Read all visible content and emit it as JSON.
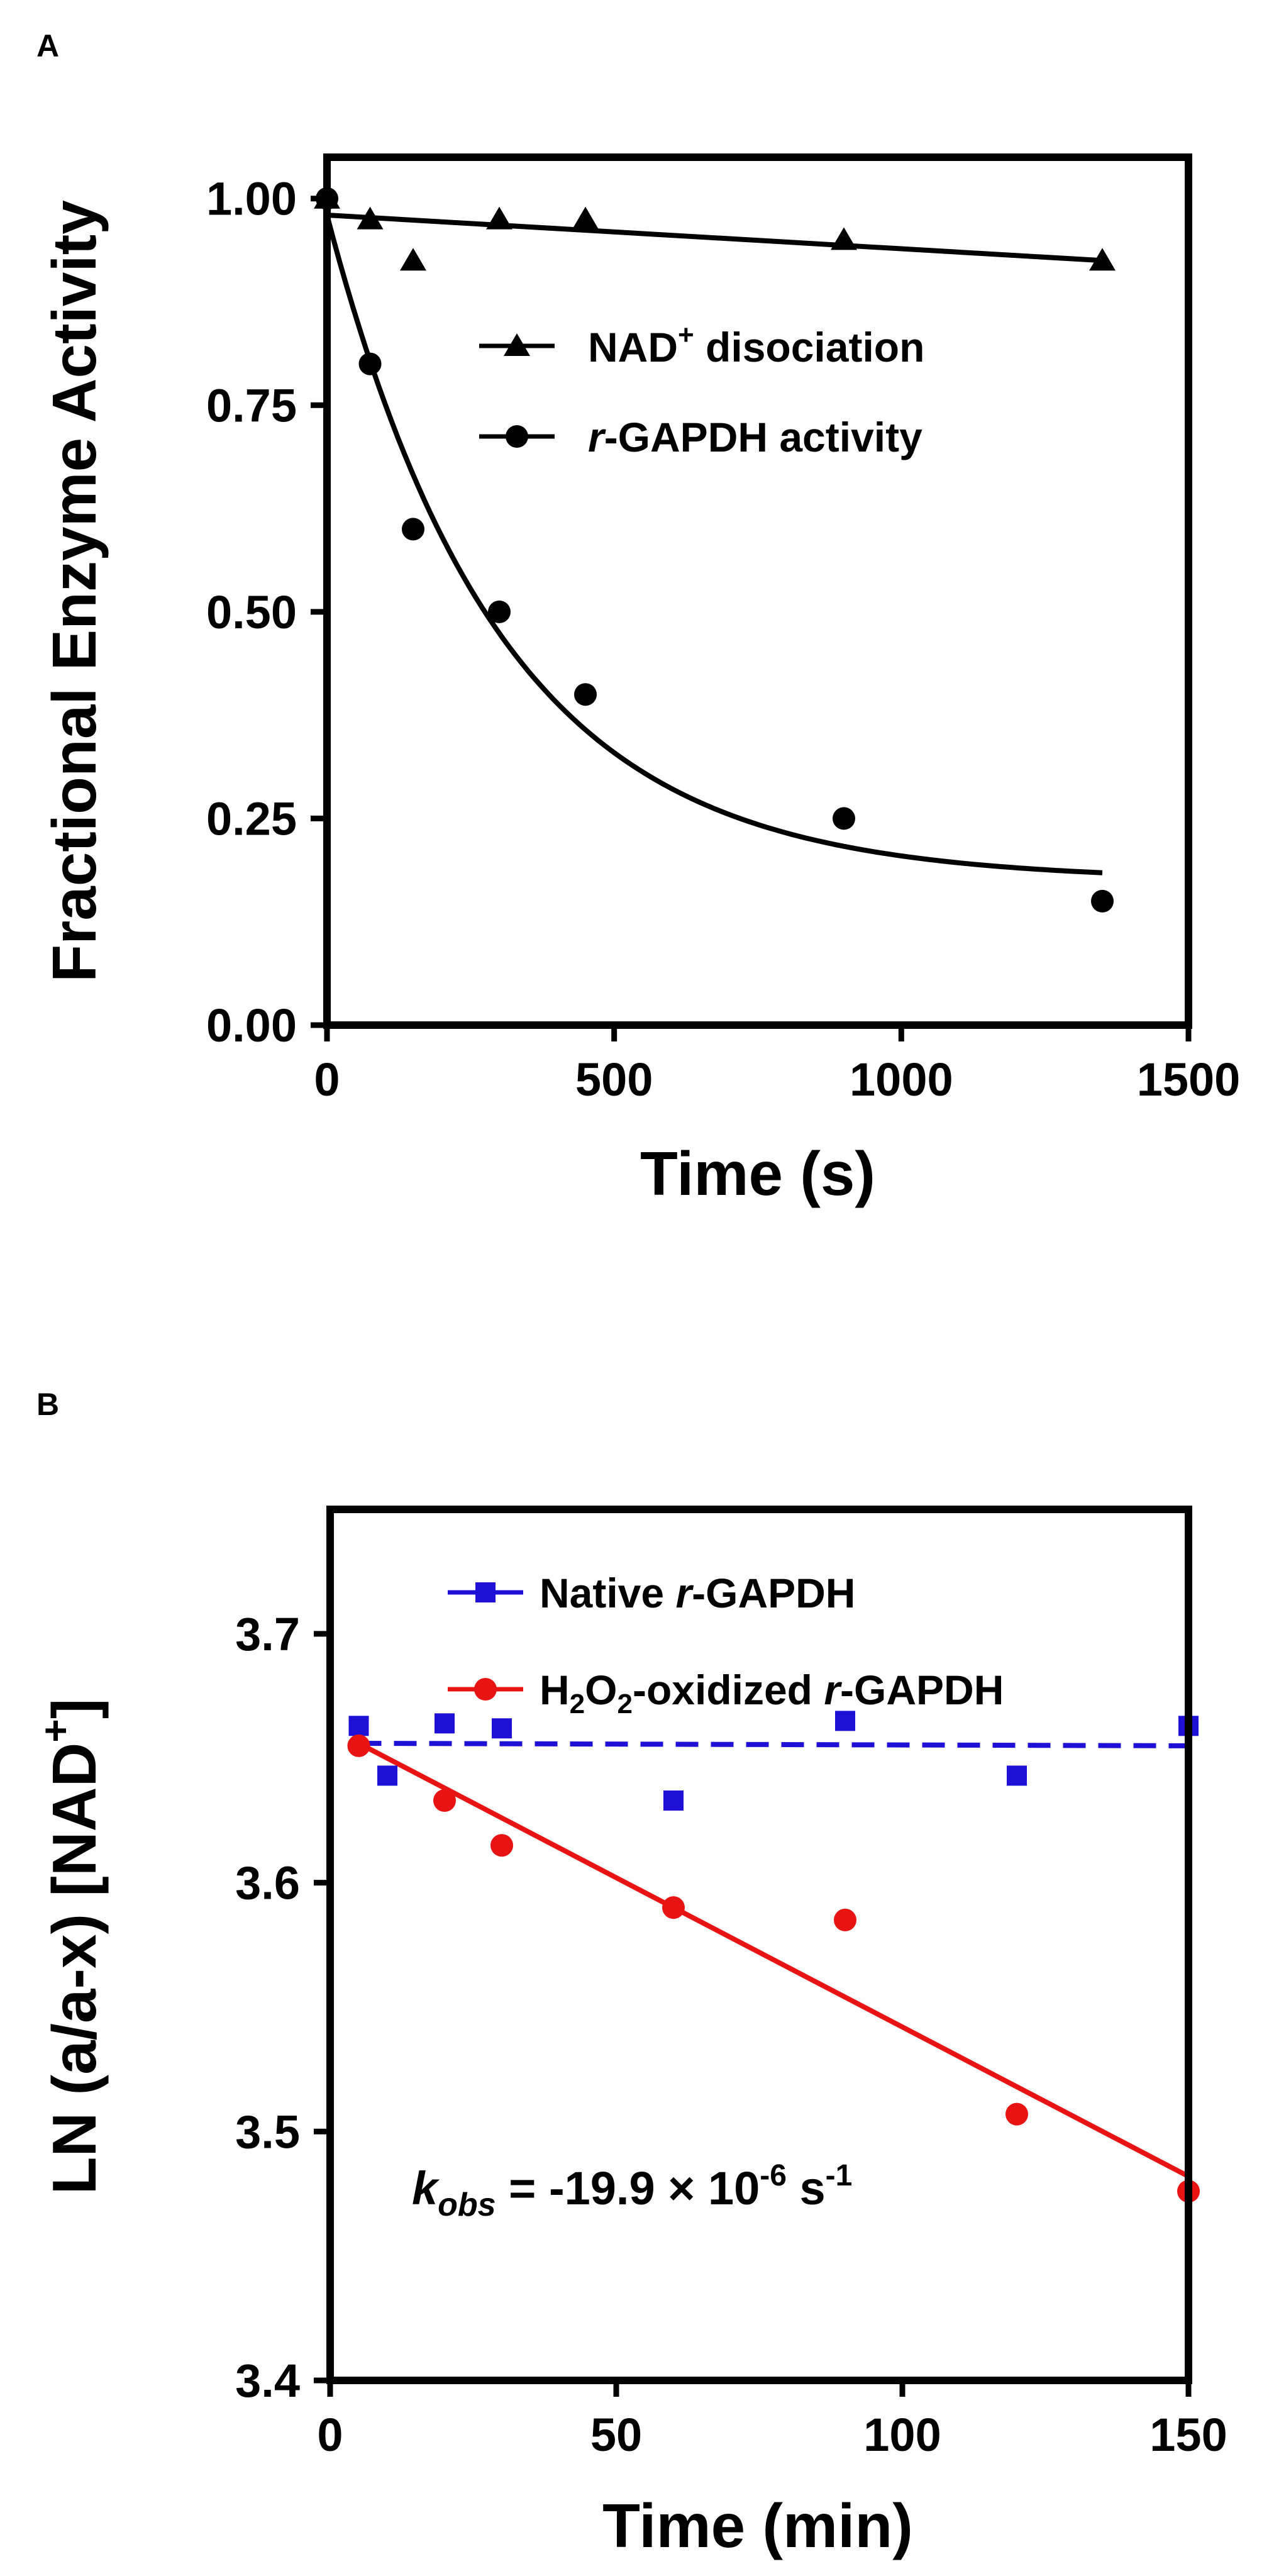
{
  "colors": {
    "black": "#000000",
    "blue": "#1f10d6",
    "red": "#e81414"
  },
  "chart_data": [
    {
      "panel": "A",
      "type": "scatter",
      "xlabel": "Time (s)",
      "ylabel": "Fractional  Enzyme Activity",
      "xlim": [
        0,
        1500
      ],
      "ylim": [
        0,
        1.05
      ],
      "xticks": [
        0,
        500,
        1000,
        1500
      ],
      "xtick_labels": [
        "0",
        "500",
        "1000",
        "1500"
      ],
      "yticks": [
        0,
        0.25,
        0.5,
        0.75,
        1.0
      ],
      "ytick_labels": [
        "0.00",
        "0.25",
        "0.50",
        "0.75",
        "1.00"
      ],
      "legend_position": "upper-middle",
      "series": [
        {
          "name": "NAD+ disociation",
          "legend_parts": [
            "NAD",
            "+",
            " disociation"
          ],
          "marker": "triangle",
          "color": "#000000",
          "x": [
            0,
            75,
            150,
            300,
            450,
            900,
            1350
          ],
          "y": [
            1.0,
            0.975,
            0.925,
            0.975,
            0.975,
            0.95,
            0.925
          ],
          "fit": {
            "type": "linear",
            "x": [
              0,
              1350
            ],
            "y": [
              0.98,
              0.925
            ]
          }
        },
        {
          "name": "r-GAPDH activity",
          "legend_parts": [
            "r",
            "-GAPDH activity"
          ],
          "marker": "circle",
          "color": "#000000",
          "x": [
            0,
            75,
            150,
            300,
            450,
            900,
            1350
          ],
          "y": [
            1.0,
            0.8,
            0.6,
            0.5,
            0.4,
            0.25,
            0.15
          ],
          "fit": {
            "type": "exponential",
            "y0": 0.98,
            "plateau": 0.175,
            "k": 0.0033,
            "x_range": [
              0,
              1350
            ]
          }
        }
      ]
    },
    {
      "panel": "B",
      "type": "scatter",
      "xlabel": "Time (min)",
      "ylabel_parts": [
        "LN (a/a-x) [NAD",
        "+",
        "]"
      ],
      "xlim": [
        0,
        150
      ],
      "ylim": [
        3.4,
        3.75
      ],
      "xticks": [
        0,
        50,
        100,
        150
      ],
      "xtick_labels": [
        "0",
        "50",
        "100",
        "150"
      ],
      "yticks": [
        3.4,
        3.5,
        3.6,
        3.7
      ],
      "ytick_labels": [
        "3.4",
        "3.5",
        "3.6",
        "3.7"
      ],
      "legend_position": "top",
      "annotation_parts": [
        "k",
        "obs",
        " = -19.9 × 10",
        "-6",
        " s",
        "-1"
      ],
      "series": [
        {
          "name": "Native r-GAPDH",
          "legend_parts": [
            "Native ",
            "r",
            "-GAPDH"
          ],
          "marker": "square",
          "color": "#1f10d6",
          "x": [
            5,
            10,
            20,
            30,
            60,
            90,
            120,
            150
          ],
          "y": [
            3.663,
            3.643,
            3.664,
            3.662,
            3.633,
            3.665,
            3.643,
            3.663
          ],
          "fit": {
            "type": "linear",
            "style": "dashed",
            "x": [
              5,
              150
            ],
            "y": [
              3.656,
              3.655
            ]
          }
        },
        {
          "name": "H2O2-oxidized r-GAPDH",
          "legend_parts": [
            "H",
            "2",
            "O",
            "2",
            "-oxidized ",
            "r",
            "-GAPDH"
          ],
          "marker": "circle",
          "color": "#e81414",
          "x": [
            5,
            20,
            30,
            60,
            90,
            120,
            150
          ],
          "y": [
            3.655,
            3.633,
            3.615,
            3.59,
            3.585,
            3.507,
            3.476
          ],
          "fit": {
            "type": "linear",
            "style": "solid",
            "x": [
              5,
              150
            ],
            "y": [
              3.656,
              3.482
            ]
          }
        }
      ]
    }
  ],
  "panels": {
    "a": {
      "label": "A"
    },
    "b": {
      "label": "B"
    }
  }
}
